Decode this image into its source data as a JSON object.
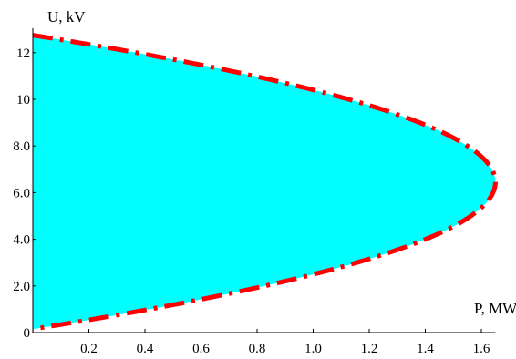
{
  "chart_data": {
    "type": "area",
    "title": "",
    "xlabel": "P, MW",
    "ylabel": "U, kV",
    "xlim": [
      0,
      1.65
    ],
    "ylim": [
      0,
      13.05
    ],
    "x_ticks": [
      "0.2",
      "0.4",
      "0.6",
      "0.8",
      "1.0",
      "1.2",
      "1.4",
      "1.6"
    ],
    "y_ticks": [
      "0",
      "2.0",
      "4.0",
      "6.0",
      "8.0",
      "10",
      "12"
    ],
    "x_tick_values": [
      0.2,
      0.4,
      0.6,
      0.8,
      1.0,
      1.2,
      1.4,
      1.6
    ],
    "y_tick_values": [
      0,
      2,
      4,
      6,
      8,
      10,
      12
    ],
    "grid": false,
    "series": [
      {
        "boundary": "parabola",
        "vertex": {
          "x": 1.65,
          "y": 6.45
        },
        "y_at_x0": [
          0.15,
          12.75
        ],
        "fill_color": "#00ffff",
        "line_color": "#ff0000",
        "line_style": "dash-dot"
      }
    ]
  }
}
